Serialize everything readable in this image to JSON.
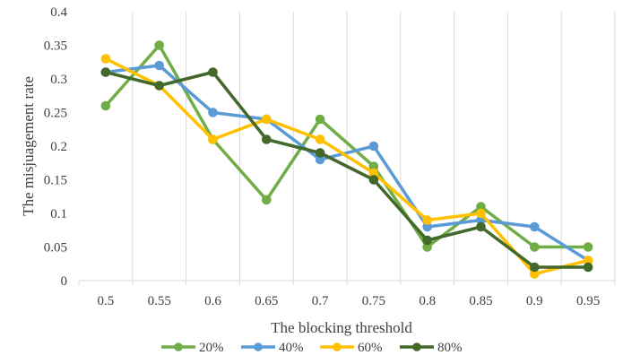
{
  "chart_data": {
    "type": "line",
    "title": "",
    "xlabel": "The blocking threshold",
    "ylabel": "The misjuagement rate",
    "categories": [
      "0.5",
      "0.55",
      "0.6",
      "0.65",
      "0.7",
      "0.75",
      "0.8",
      "0.85",
      "0.9",
      "0.95"
    ],
    "yticks": [
      "0",
      "0.05",
      "0.1",
      "0.15",
      "0.2",
      "0.25",
      "0.3",
      "0.35",
      "0.4"
    ],
    "ylim": [
      0,
      0.4
    ],
    "grid": "vertical",
    "legend_position": "bottom",
    "series": [
      {
        "name": "20%",
        "color": "#70AD47",
        "values": [
          0.26,
          0.35,
          0.21,
          0.12,
          0.24,
          0.17,
          0.05,
          0.11,
          0.05,
          0.05
        ]
      },
      {
        "name": "40%",
        "color": "#5B9BD5",
        "values": [
          0.31,
          0.32,
          0.25,
          0.24,
          0.18,
          0.2,
          0.08,
          0.09,
          0.08,
          0.03
        ]
      },
      {
        "name": "60%",
        "color": "#FFC000",
        "values": [
          0.33,
          0.29,
          0.21,
          0.24,
          0.21,
          0.16,
          0.09,
          0.1,
          0.01,
          0.03
        ]
      },
      {
        "name": "80%",
        "color": "#43682B",
        "values": [
          0.31,
          0.29,
          0.31,
          0.21,
          0.19,
          0.15,
          0.06,
          0.08,
          0.02,
          0.02
        ]
      }
    ]
  }
}
